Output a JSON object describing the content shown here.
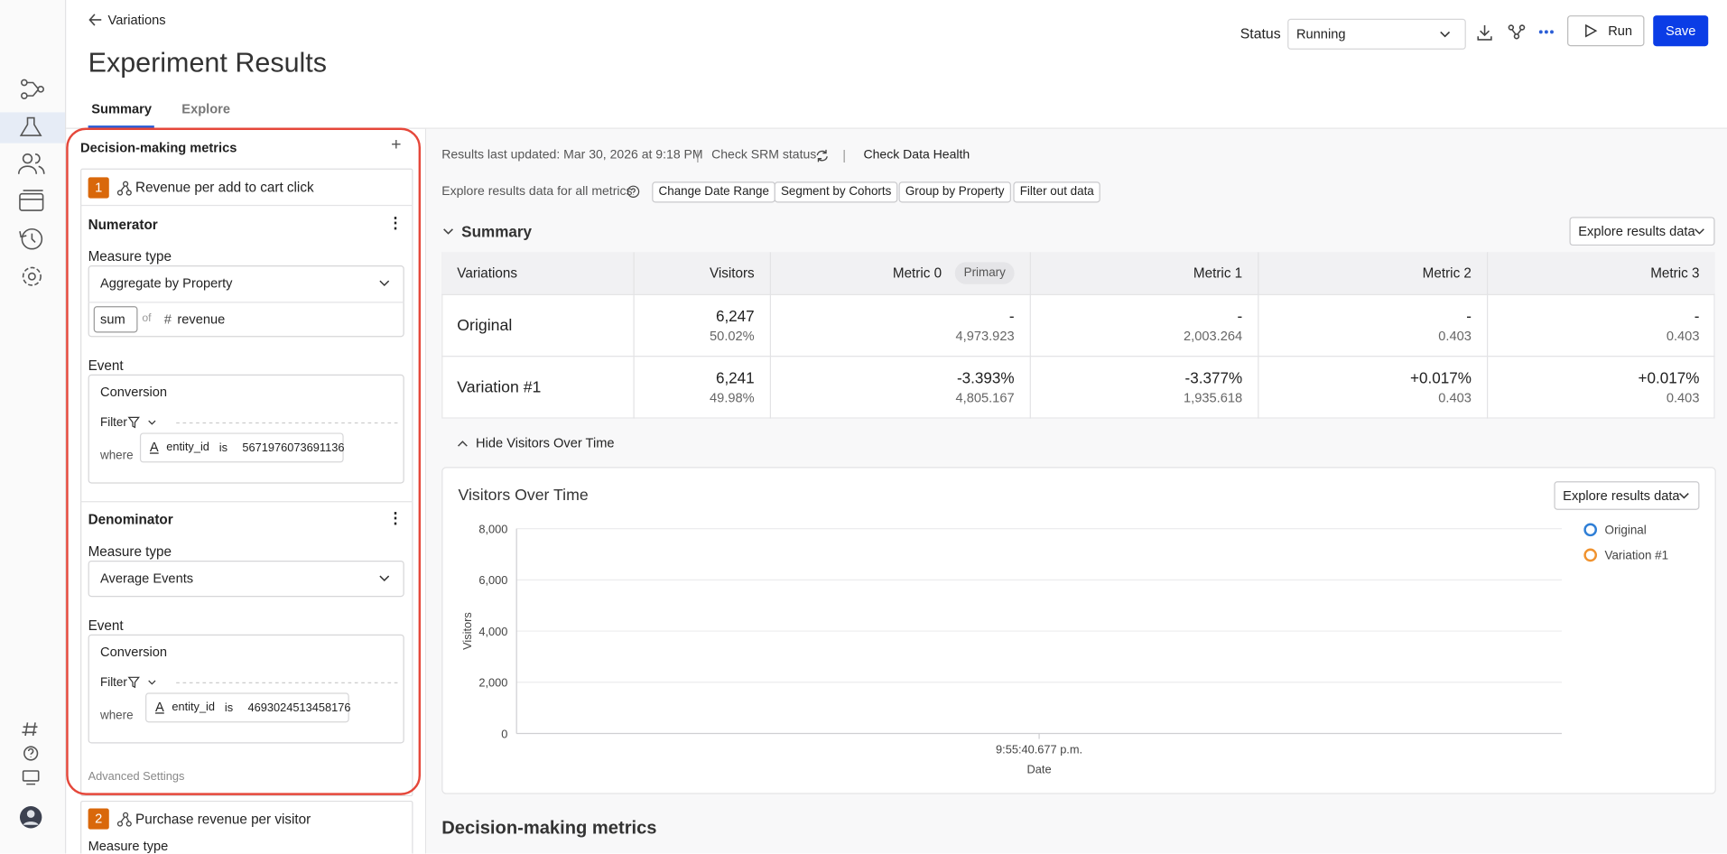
{
  "nav": {
    "back": "Variations"
  },
  "header": {
    "title": "Experiment Results",
    "status_label": "Status",
    "status_value": "Running",
    "run": "Run",
    "save": "Save"
  },
  "tabs": [
    "Summary",
    "Explore"
  ],
  "sidebar": {
    "title": "Decision-making metrics",
    "metrics": [
      {
        "number": "1",
        "name": "Revenue per add to cart click",
        "numerator": {
          "title": "Numerator",
          "measure_label": "Measure type",
          "measure": "Aggregate by Property",
          "agg": "sum",
          "of": "of",
          "property": "revenue",
          "event_label": "Event",
          "event": "Conversion",
          "filter": "Filter",
          "where": "where",
          "field": "entity_id",
          "op": "is",
          "value": "5671976073691136"
        },
        "denominator": {
          "title": "Denominator",
          "measure_label": "Measure type",
          "measure": "Average Events",
          "event_label": "Event",
          "event": "Conversion",
          "filter": "Filter",
          "where": "where",
          "field": "entity_id",
          "op": "is",
          "value": "4693024513458176"
        },
        "advanced": "Advanced Settings"
      },
      {
        "number": "2",
        "name": "Purchase revenue per visitor",
        "measure_label": "Measure type"
      }
    ]
  },
  "main": {
    "updated": "Results last updated: Mar 30, 2026 at 9:18 PM",
    "srm": "Check SRM status",
    "health": "Check Data Health",
    "explore_prompt": "Explore results data for all metrics",
    "actions": [
      "Change Date Range",
      "Segment by Cohorts",
      "Group by Property",
      "Filter out data"
    ],
    "summary_title": "Summary",
    "explore_button": "Explore results data",
    "table": {
      "columns": [
        "Variations",
        "Visitors",
        "Metric 0",
        "Metric 1",
        "Metric 2",
        "Metric 3"
      ],
      "primary_badge": "Primary",
      "rows": [
        {
          "name": "Original",
          "cells": [
            [
              "6,247",
              "50.02%"
            ],
            [
              "-",
              "4,973.923"
            ],
            [
              "-",
              "2,003.264"
            ],
            [
              "-",
              "0.403"
            ],
            [
              "-",
              "0.403"
            ]
          ]
        },
        {
          "name": "Variation #1",
          "cells": [
            [
              "6,241",
              "49.98%"
            ],
            [
              "-3.393%",
              "4,805.167"
            ],
            [
              "-3.377%",
              "1,935.618"
            ],
            [
              "+0.017%",
              "0.403"
            ],
            [
              "+0.017%",
              "0.403"
            ]
          ]
        }
      ]
    },
    "hide_toggle": "Hide Visitors Over Time",
    "bottom_title": "Decision-making metrics"
  },
  "chart": {
    "type": "line",
    "title": "Visitors Over Time",
    "explore_button": "Explore results data",
    "y_label": "Visitors",
    "x_label": "Date",
    "categories": [
      "9:55:40.677 p.m."
    ],
    "ylim": [
      0,
      8000
    ],
    "yticks": [
      0,
      {
        "value": 2000,
        "label": "2,000"
      },
      {
        "value": 4000,
        "label": "4,000"
      },
      {
        "value": 6000,
        "label": "6,000"
      },
      {
        "value": 8000,
        "label": "8,000"
      }
    ],
    "grid": true,
    "series": [
      {
        "name": "Original",
        "color": "#2f7fd6"
      },
      {
        "name": "Variation #1",
        "color": "#f0922e"
      }
    ]
  }
}
